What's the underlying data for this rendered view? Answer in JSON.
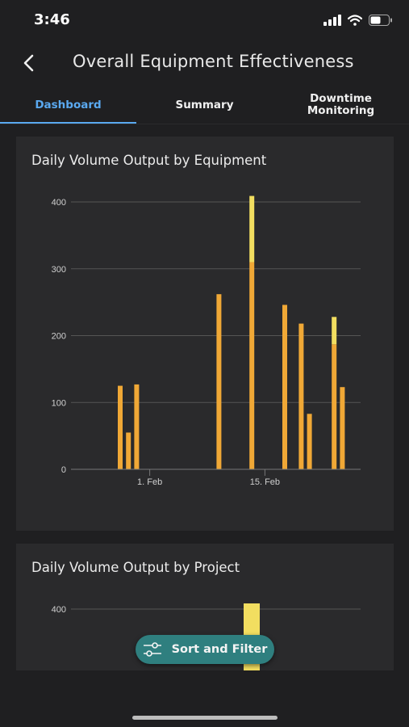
{
  "status_bar": {
    "time": "3:46"
  },
  "header": {
    "title": "Overall Equipment Effectiveness"
  },
  "tabs": [
    {
      "label": "Dashboard",
      "active": true
    },
    {
      "label": "Summary",
      "active": false
    },
    {
      "label": "Downtime\nMonitoring",
      "active": false
    }
  ],
  "colors": {
    "accent": "#5aa9f0",
    "bar_orange": "#f0a836",
    "bar_yellow": "#f2de60",
    "fab": "#2f7f7f",
    "background": "#1f1f21",
    "card": "#2a2a2c"
  },
  "fab": {
    "label": "Sort and Filter",
    "icon": "sliders-icon"
  },
  "chart_data": [
    {
      "type": "bar",
      "title": "Daily Volume Output by Equipment",
      "stacked": true,
      "ylim": [
        0,
        400
      ],
      "yticks": [
        "0",
        "100",
        "200",
        "300",
        "400"
      ],
      "xticks": [
        "1. Feb",
        "15. Feb"
      ],
      "grid": true,
      "bars": [
        {
          "date": "2023-01-29",
          "orange": 125,
          "yellow": 0
        },
        {
          "date": "2023-01-30",
          "orange": 55,
          "yellow": 0
        },
        {
          "date": "2023-01-31",
          "orange": 127,
          "yellow": 0
        },
        {
          "date": "2023-02-10",
          "orange": 262,
          "yellow": 0
        },
        {
          "date": "2023-02-14",
          "orange": 310,
          "yellow": 99
        },
        {
          "date": "2023-02-18",
          "orange": 246,
          "yellow": 0
        },
        {
          "date": "2023-02-20",
          "orange": 218,
          "yellow": 0
        },
        {
          "date": "2023-02-21",
          "orange": 83,
          "yellow": 0
        },
        {
          "date": "2023-02-24",
          "orange": 187,
          "yellow": 41
        },
        {
          "date": "2023-02-25",
          "orange": 123,
          "yellow": 0
        }
      ]
    },
    {
      "type": "bar",
      "title": "Daily Volume Output by Project",
      "yticks": [
        "400"
      ],
      "grid": true
    }
  ]
}
